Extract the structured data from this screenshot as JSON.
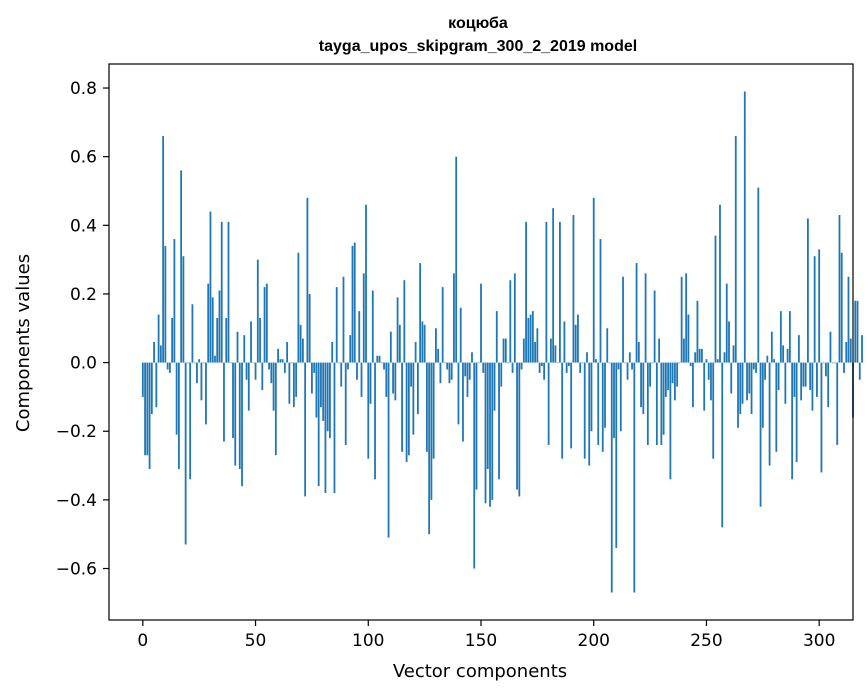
{
  "chart_data": {
    "type": "bar",
    "title": "коцюба",
    "subtitle": "tayga_upos_skipgram_300_2_2019 model",
    "xlabel": "Vector components",
    "ylabel": "Components values",
    "xlim": [
      -15,
      315
    ],
    "ylim": [
      -0.75,
      0.87
    ],
    "xticks": [
      0,
      50,
      100,
      150,
      200,
      250,
      300
    ],
    "yticks": [
      -0.6,
      -0.4,
      -0.2,
      0.0,
      0.2,
      0.4,
      0.6,
      0.8
    ],
    "xtick_labels": [
      "0",
      "50",
      "100",
      "150",
      "200",
      "250",
      "300"
    ],
    "ytick_labels": [
      "−0.6",
      "−0.4",
      "−0.2",
      "0.0",
      "0.2",
      "0.4",
      "0.6",
      "0.8"
    ],
    "grid": false,
    "bar_color": "#1f77b4",
    "values": [
      -0.1,
      -0.27,
      -0.27,
      -0.31,
      -0.15,
      0.06,
      -0.13,
      0.14,
      0.05,
      0.66,
      0.34,
      -0.02,
      -0.03,
      0.13,
      0.36,
      -0.21,
      -0.31,
      0.56,
      0.31,
      -0.53,
      0.0,
      -0.34,
      0.17,
      0.0,
      -0.06,
      0.01,
      -0.11,
      0.0,
      -0.18,
      0.23,
      0.44,
      0.19,
      0.02,
      0.13,
      0.21,
      0.41,
      -0.23,
      0.13,
      0.41,
      0.0,
      -0.22,
      -0.3,
      0.09,
      -0.31,
      -0.36,
      0.08,
      -0.05,
      -0.14,
      0.12,
      0.0,
      -0.05,
      0.3,
      0.13,
      -0.08,
      0.22,
      0.23,
      -0.02,
      -0.06,
      -0.14,
      -0.27,
      0.04,
      0.01,
      0.01,
      -0.03,
      0.06,
      -0.12,
      0.0,
      -0.13,
      -0.1,
      0.32,
      0.11,
      0.07,
      -0.39,
      0.48,
      0.2,
      -0.09,
      -0.03,
      -0.16,
      -0.36,
      -0.13,
      -0.17,
      -0.38,
      -0.2,
      -0.22,
      0.06,
      -0.38,
      0.22,
      0.0,
      -0.07,
      0.25,
      -0.24,
      -0.02,
      0.08,
      0.34,
      0.35,
      -0.05,
      0.15,
      -0.1,
      0.26,
      0.46,
      -0.28,
      -0.12,
      0.21,
      -0.34,
      0.02,
      0.02,
      0.0,
      -0.02,
      -0.1,
      -0.51,
      0.09,
      -0.09,
      -0.11,
      0.19,
      0.11,
      -0.26,
      0.24,
      -0.29,
      -0.27,
      -0.07,
      -0.21,
      0.06,
      -0.15,
      0.29,
      0.12,
      0.11,
      -0.26,
      -0.5,
      -0.4,
      -0.28,
      0.1,
      0.04,
      -0.06,
      0.22,
      0.0,
      -0.02,
      -0.06,
      -0.05,
      0.26,
      0.6,
      -0.18,
      0.16,
      -0.23,
      -0.04,
      -0.1,
      -0.05,
      0.03,
      -0.6,
      -0.37,
      0.0,
      0.23,
      -0.03,
      -0.41,
      -0.31,
      -0.42,
      -0.4,
      -0.14,
      0.15,
      -0.34,
      -0.07,
      0.07,
      0.07,
      0.0,
      0.24,
      -0.03,
      0.26,
      -0.37,
      -0.39,
      -0.02,
      0.07,
      0.41,
      0.13,
      0.14,
      0.15,
      0.06,
      0.1,
      -0.03,
      -0.01,
      -0.05,
      0.41,
      -0.24,
      0.07,
      0.45,
      0.05,
      0.0,
      0.41,
      -0.28,
      0.12,
      -0.03,
      -0.01,
      -0.25,
      0.43,
      0.11,
      0.14,
      -0.03,
      0.0,
      -0.28,
      0.03,
      -0.3,
      -0.2,
      0.48,
      0.01,
      -0.24,
      0.36,
      -0.26,
      -0.19,
      0.1,
      0.0,
      -0.67,
      -0.22,
      -0.54,
      -0.02,
      -0.2,
      0.25,
      0.0,
      -0.05,
      0.03,
      -0.02,
      -0.67,
      0.29,
      0.06,
      -0.13,
      -0.15,
      0.26,
      -0.24,
      -0.07,
      0.0,
      0.21,
      -0.24,
      0.07,
      -0.24,
      -0.21,
      -0.1,
      -0.08,
      -0.34,
      -0.06,
      -0.11,
      -0.07,
      0.0,
      0.25,
      0.07,
      0.26,
      0.14,
      -0.01,
      -0.13,
      0.03,
      0.18,
      0.04,
      0.04,
      -0.14,
      0.01,
      -0.05,
      -0.11,
      -0.28,
      0.37,
      0.01,
      0.46,
      -0.48,
      0.03,
      0.23,
      0.12,
      -0.09,
      0.05,
      0.66,
      -0.19,
      -0.15,
      -0.12,
      0.79,
      -0.11,
      -0.09,
      -0.15,
      -0.02,
      -0.03,
      0.51,
      -0.42,
      -0.19,
      -0.05,
      0.02,
      -0.3,
      0.09,
      0.01,
      -0.26,
      -0.08,
      0.15,
      0.05,
      -0.12,
      0.04,
      0.15,
      -0.34,
      -0.1,
      -0.29,
      0.08,
      -0.11,
      -0.07,
      -0.07,
      0.42,
      -0.08,
      -0.14,
      0.31,
      -0.1,
      0.33,
      -0.32,
      0.0,
      -0.04,
      -0.13,
      0.09,
      0.0,
      0.0,
      -0.24,
      0.43,
      0.32,
      -0.03,
      0.06,
      0.25,
      0.07,
      -0.16,
      0.18,
      0.18,
      -0.05,
      0.08
    ]
  }
}
